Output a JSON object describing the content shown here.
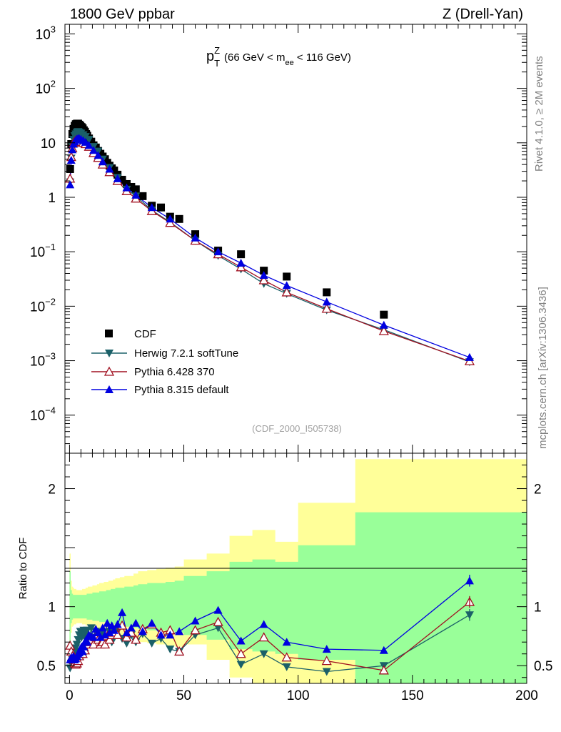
{
  "header": {
    "left": "1800 GeV ppbar",
    "right": "Z (Drell-Yan)"
  },
  "side": {
    "rivet": "Rivet 4.1.0, ≥ 2M events",
    "mcplots": "mcplots.cern.ch [arXiv:1306.3436]"
  },
  "chart_data": {
    "type": "line",
    "title": "pT^Z (66 GeV < m_ee < 116 GeV)",
    "title_parts": {
      "p": "p",
      "z": "Z",
      "t": "T",
      "a": "(66 GeV < m",
      "ee": "ee",
      "b": " < 116 GeV)"
    },
    "watermark": "(CDF_2000_I505738)",
    "x": {
      "lim": [
        -2,
        200
      ],
      "ticks": [
        0,
        50,
        100,
        150,
        200
      ],
      "labels": [
        "0",
        "50",
        "100",
        "150",
        "200"
      ]
    },
    "main": {
      "yscale": "log",
      "ylim": [
        2e-05,
        1500
      ],
      "yticks": [
        {
          "v": 1000,
          "b": "10",
          "e": "3"
        },
        {
          "v": 100,
          "b": "10",
          "e": "2"
        },
        {
          "v": 10,
          "b": "10",
          "e": ""
        },
        {
          "v": 1,
          "b": "1",
          "e": ""
        },
        {
          "v": 0.1,
          "b": "10",
          "e": "−1"
        },
        {
          "v": 0.01,
          "b": "10",
          "e": "−2"
        },
        {
          "v": 0.001,
          "b": "10",
          "e": "−3"
        },
        {
          "v": 0.0001,
          "b": "10",
          "e": "−4"
        }
      ],
      "data": {
        "name": "CDF",
        "x": [
          0.25,
          0.75,
          1.25,
          1.75,
          2.25,
          2.75,
          3.25,
          3.75,
          4.25,
          4.75,
          5.25,
          5.75,
          6.25,
          6.75,
          7.25,
          7.75,
          8.5,
          9.5,
          10.5,
          11.5,
          12.5,
          13.5,
          14.5,
          15.5,
          16.5,
          17.5,
          18.5,
          19.5,
          21,
          23,
          25,
          27,
          29,
          32,
          36,
          40,
          44,
          48,
          55,
          65,
          75,
          85,
          95,
          112.5,
          137.5
        ],
        "y": [
          3.3,
          9.5,
          14.5,
          18,
          20.5,
          22,
          22.5,
          22.5,
          21.5,
          20.5,
          19.5,
          18.5,
          17,
          16,
          14.5,
          13.5,
          12,
          10.5,
          9,
          8.2,
          7.1,
          6.3,
          5.6,
          5,
          4.3,
          3.8,
          3.4,
          3.1,
          2.6,
          2.1,
          1.75,
          1.55,
          1.4,
          1.05,
          0.7,
          0.65,
          0.44,
          0.4,
          0.21,
          0.105,
          0.09,
          0.045,
          0.035,
          0.018,
          0.007
        ]
      },
      "series": [
        {
          "name": "Herwig 7.2.1 softTune",
          "color": "#1b6068",
          "marker": "tri-down-filled",
          "x": [
            0.25,
            0.75,
            1.25,
            1.75,
            2.25,
            2.75,
            3.25,
            3.75,
            4.25,
            5,
            6,
            7,
            8.5,
            10.5,
            12.5,
            14.5,
            17.5,
            21,
            25,
            29,
            36,
            44,
            55,
            65,
            75,
            85,
            95,
            112.5,
            137.5,
            175
          ],
          "y": [
            1.9,
            5.2,
            8.5,
            11.5,
            13.5,
            14.5,
            15.5,
            16,
            15.5,
            15,
            14,
            13,
            11.5,
            8.5,
            7,
            5,
            3.5,
            2.3,
            1.4,
            1.05,
            0.58,
            0.35,
            0.16,
            0.085,
            0.048,
            0.026,
            0.017,
            0.0085,
            0.0037,
            0.00095
          ]
        },
        {
          "name": "Pythia 6.428 370",
          "color": "#a01020",
          "marker": "tri-up-open",
          "x": [
            0.25,
            0.75,
            1.25,
            1.75,
            2.25,
            2.75,
            3.25,
            3.75,
            4.25,
            5,
            6,
            7,
            8.5,
            10.5,
            12.5,
            14.5,
            17.5,
            21,
            25,
            29,
            36,
            44,
            55,
            65,
            75,
            85,
            95,
            112.5,
            137.5,
            175
          ],
          "y": [
            2.2,
            5.5,
            8,
            10,
            10.5,
            11,
            11.3,
            11.3,
            11,
            10.5,
            10,
            9.5,
            8.5,
            6.5,
            5.3,
            4,
            2.9,
            2,
            1.3,
            0.95,
            0.56,
            0.34,
            0.16,
            0.09,
            0.052,
            0.03,
            0.018,
            0.009,
            0.0035,
            0.00098
          ]
        },
        {
          "name": "Pythia 8.315 default",
          "color": "#0000e0",
          "marker": "tri-up-filled",
          "x": [
            0.25,
            0.75,
            1.25,
            1.75,
            2.25,
            2.75,
            3.25,
            3.75,
            4.25,
            5,
            6,
            7,
            8.5,
            10.5,
            12.5,
            14.5,
            17.5,
            21,
            25,
            29,
            36,
            44,
            55,
            65,
            75,
            85,
            95,
            112.5,
            137.5,
            175
          ],
          "y": [
            1.7,
            4.8,
            7.5,
            9.5,
            10.5,
            11.3,
            11.8,
            12,
            12,
            11.7,
            11,
            10.3,
            9,
            7.3,
            5.9,
            4.5,
            3.3,
            2.2,
            1.5,
            1.1,
            0.65,
            0.4,
            0.18,
            0.1,
            0.062,
            0.037,
            0.024,
            0.012,
            0.0045,
            0.00115
          ]
        }
      ],
      "legend": {
        "position": "lower-left",
        "entries": [
          "CDF",
          "Herwig 7.2.1 softTune",
          "Pythia 6.428 370",
          "Pythia 8.315 default"
        ]
      }
    },
    "ratio": {
      "ylabel": "Ratio to CDF",
      "ylim": [
        0.35,
        2.3
      ],
      "yticks": [
        0.5,
        1,
        2
      ],
      "ylabels": [
        "0.5",
        "1",
        "2"
      ],
      "bands_x": [
        0,
        0.5,
        1,
        1.5,
        2,
        2.5,
        3,
        3.5,
        4,
        4.5,
        5,
        5.5,
        6,
        6.5,
        7,
        7.5,
        8,
        9,
        10,
        11,
        12,
        13,
        14,
        15,
        16,
        17,
        18,
        19,
        20,
        22,
        24,
        26,
        28,
        30,
        34,
        38,
        42,
        46,
        50,
        60,
        70,
        80,
        90,
        100,
        125,
        150,
        200
      ],
      "yellow_hi": [
        1.45,
        1.22,
        1.17,
        1.16,
        1.15,
        1.15,
        1.14,
        1.14,
        1.14,
        1.14,
        1.14,
        1.15,
        1.15,
        1.15,
        1.16,
        1.16,
        1.17,
        1.17,
        1.18,
        1.18,
        1.19,
        1.2,
        1.2,
        1.21,
        1.21,
        1.22,
        1.22,
        1.23,
        1.24,
        1.25,
        1.26,
        1.26,
        1.28,
        1.3,
        1.31,
        1.32,
        1.33,
        1.34,
        1.4,
        1.45,
        1.6,
        1.65,
        1.55,
        1.88,
        2.25,
        2.25
      ],
      "yellow_lo": [
        0.55,
        0.78,
        0.83,
        0.84,
        0.85,
        0.85,
        0.86,
        0.86,
        0.86,
        0.86,
        0.86,
        0.85,
        0.85,
        0.85,
        0.84,
        0.84,
        0.83,
        0.83,
        0.82,
        0.82,
        0.81,
        0.8,
        0.8,
        0.79,
        0.79,
        0.78,
        0.78,
        0.77,
        0.76,
        0.75,
        0.74,
        0.74,
        0.72,
        0.7,
        0.69,
        0.68,
        0.67,
        0.66,
        0.68,
        0.55,
        0.4,
        0.35,
        0.35,
        0.35,
        0.35,
        0.35
      ],
      "green_hi": [
        1.3,
        1.14,
        1.11,
        1.1,
        1.1,
        1.1,
        1.1,
        1.1,
        1.1,
        1.1,
        1.1,
        1.1,
        1.1,
        1.1,
        1.1,
        1.11,
        1.11,
        1.11,
        1.12,
        1.12,
        1.12,
        1.13,
        1.13,
        1.13,
        1.14,
        1.14,
        1.15,
        1.15,
        1.16,
        1.16,
        1.17,
        1.17,
        1.18,
        1.19,
        1.2,
        1.2,
        1.21,
        1.22,
        1.26,
        1.3,
        1.38,
        1.4,
        1.38,
        1.52,
        1.8,
        1.8
      ],
      "green_lo": [
        0.7,
        0.86,
        0.89,
        0.9,
        0.9,
        0.9,
        0.9,
        0.9,
        0.9,
        0.9,
        0.9,
        0.9,
        0.9,
        0.9,
        0.9,
        0.89,
        0.89,
        0.89,
        0.88,
        0.88,
        0.88,
        0.87,
        0.87,
        0.87,
        0.86,
        0.86,
        0.85,
        0.85,
        0.84,
        0.84,
        0.83,
        0.83,
        0.82,
        0.81,
        0.8,
        0.8,
        0.79,
        0.78,
        0.76,
        0.72,
        0.64,
        0.62,
        0.6,
        0.55,
        0.35,
        0.35
      ],
      "series": [
        {
          "name": "Herwig 7.2.1 softTune",
          "color": "#1b6068",
          "marker": "tri-down-filled",
          "x": [
            0.25,
            0.75,
            1.25,
            1.75,
            2.25,
            2.75,
            3.25,
            3.75,
            4.25,
            4.75,
            5.25,
            5.75,
            6.25,
            6.75,
            7.25,
            7.75,
            8.5,
            9.5,
            10.5,
            11.5,
            12.5,
            13.5,
            14.5,
            15.5,
            16.5,
            17.5,
            18.5,
            19.5,
            21,
            23,
            25,
            27,
            29,
            32,
            36,
            40,
            44,
            48,
            55,
            65,
            75,
            85,
            95,
            112.5,
            137.5,
            175
          ],
          "y": [
            0.48,
            0.52,
            0.55,
            0.58,
            0.62,
            0.65,
            0.68,
            0.72,
            0.76,
            0.79,
            0.74,
            0.78,
            0.8,
            0.76,
            0.72,
            0.8,
            0.7,
            0.82,
            0.72,
            0.79,
            0.73,
            0.7,
            0.78,
            0.71,
            0.74,
            0.79,
            0.7,
            0.77,
            0.81,
            0.73,
            0.69,
            0.76,
            0.7,
            0.77,
            0.69,
            0.73,
            0.64,
            0.62,
            0.76,
            0.82,
            0.51,
            0.6,
            0.49,
            0.45,
            0.5,
            0.93
          ]
        },
        {
          "name": "Pythia 6.428 370",
          "color": "#a01020",
          "marker": "tri-up-open",
          "x": [
            0.25,
            0.75,
            1.25,
            1.75,
            2.25,
            2.75,
            3.25,
            3.75,
            4.25,
            4.75,
            5.25,
            5.75,
            6.25,
            6.75,
            7.25,
            7.75,
            8.5,
            9.5,
            10.5,
            11.5,
            12.5,
            13.5,
            14.5,
            15.5,
            16.5,
            17.5,
            18.5,
            19.5,
            21,
            23,
            25,
            27,
            29,
            32,
            36,
            40,
            44,
            48,
            55,
            65,
            75,
            85,
            95,
            112.5,
            137.5,
            175
          ],
          "y": [
            0.67,
            0.62,
            0.58,
            0.55,
            0.52,
            0.51,
            0.52,
            0.54,
            0.58,
            0.6,
            0.63,
            0.6,
            0.66,
            0.63,
            0.68,
            0.68,
            0.7,
            0.72,
            0.68,
            0.74,
            0.72,
            0.68,
            0.7,
            0.68,
            0.75,
            0.72,
            0.76,
            0.78,
            0.76,
            0.84,
            0.74,
            0.78,
            0.72,
            0.81,
            0.85,
            0.78,
            0.8,
            0.62,
            0.8,
            0.87,
            0.6,
            0.74,
            0.57,
            0.54,
            0.46,
            1.04
          ]
        },
        {
          "name": "Pythia 8.315 default",
          "color": "#0000e0",
          "marker": "tri-up-filled",
          "x": [
            0.25,
            0.75,
            1.25,
            1.75,
            2.25,
            2.75,
            3.25,
            3.75,
            4.25,
            4.75,
            5.25,
            5.75,
            6.25,
            6.75,
            7.25,
            7.75,
            8.5,
            9.5,
            10.5,
            11.5,
            12.5,
            13.5,
            14.5,
            15.5,
            16.5,
            17.5,
            18.5,
            19.5,
            21,
            23,
            25,
            27,
            29,
            32,
            36,
            40,
            44,
            48,
            55,
            65,
            75,
            85,
            95,
            112.5,
            137.5,
            175
          ],
          "y": [
            0.55,
            0.57,
            0.56,
            0.58,
            0.55,
            0.56,
            0.58,
            0.6,
            0.61,
            0.64,
            0.66,
            0.62,
            0.66,
            0.7,
            0.72,
            0.7,
            0.76,
            0.75,
            0.74,
            0.81,
            0.78,
            0.74,
            0.82,
            0.76,
            0.86,
            0.78,
            0.84,
            0.8,
            0.85,
            0.95,
            0.78,
            0.82,
            0.86,
            0.79,
            0.86,
            0.76,
            0.76,
            0.79,
            0.88,
            0.97,
            0.71,
            0.85,
            0.7,
            0.64,
            0.63,
            1.22
          ]
        }
      ]
    }
  }
}
